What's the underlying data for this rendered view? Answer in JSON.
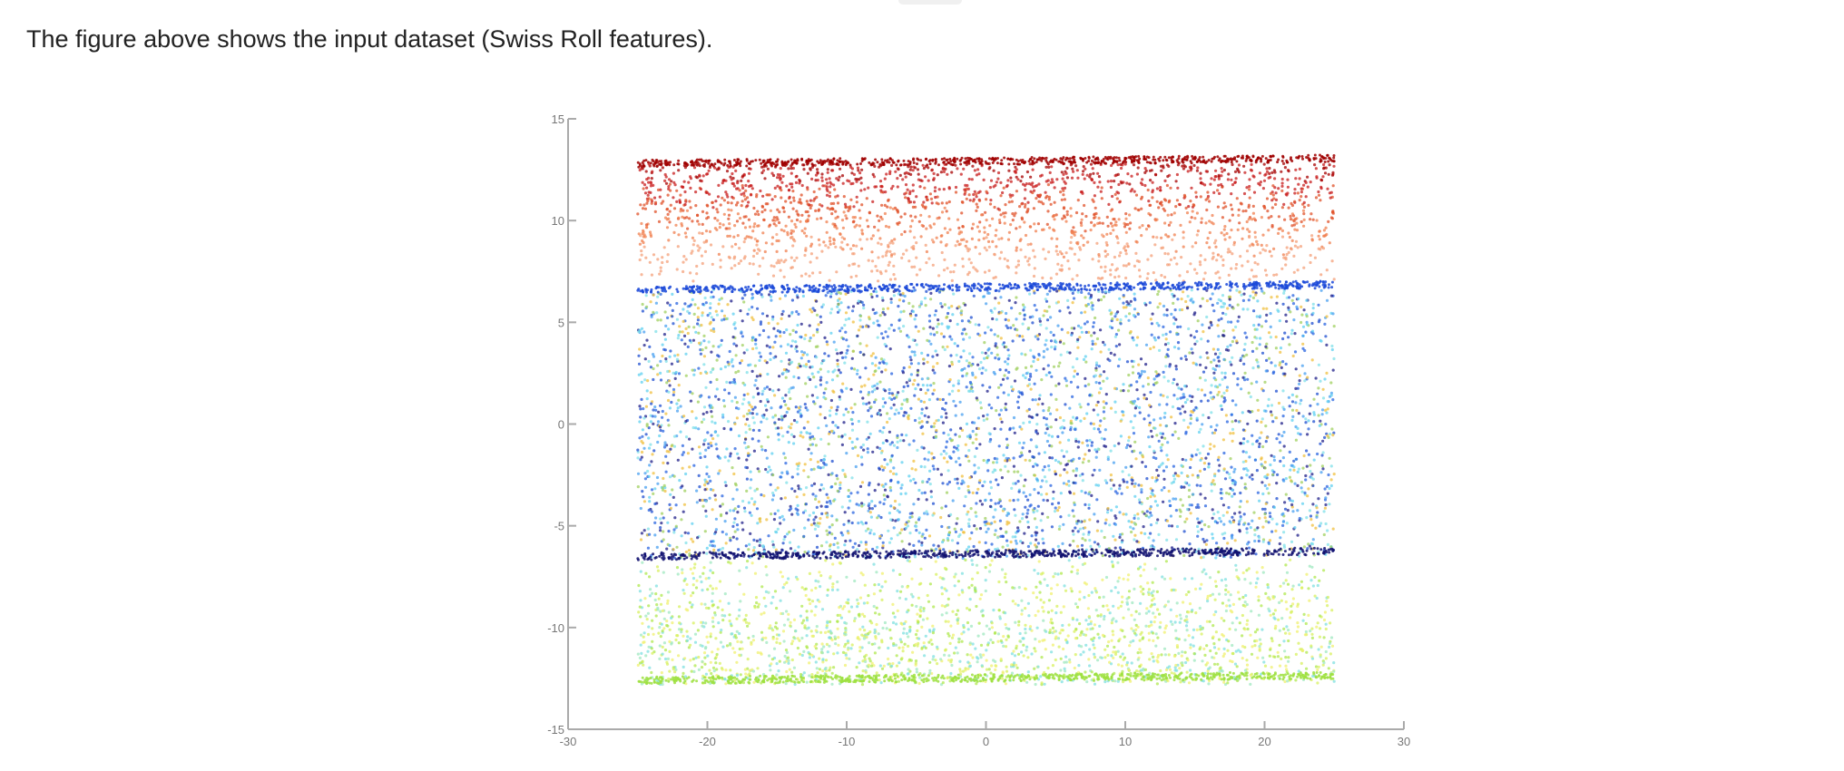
{
  "page": {
    "caption": "The figure above shows the input dataset (Swiss Roll features)."
  },
  "chart_data": {
    "type": "scatter",
    "title": "",
    "xlabel": "",
    "ylabel": "",
    "xlim": [
      -30,
      30
    ],
    "ylim": [
      -15,
      15
    ],
    "grid": false,
    "legend": "none",
    "x_ticks": [
      -30,
      -20,
      -10,
      0,
      10,
      20,
      30
    ],
    "y_ticks": [
      -15,
      -10,
      -5,
      0,
      5,
      10,
      15
    ],
    "x_tick_labels": [
      "-30",
      "-20",
      "-10",
      "0",
      "10",
      "20",
      "30"
    ],
    "y_tick_labels": [
      "-15",
      "-10",
      "-5",
      "0",
      "5",
      "10",
      "15"
    ],
    "x_extent": [
      -25,
      25
    ],
    "bands": [
      {
        "y_range": [
          7,
          12.8
        ],
        "colors": [
          "#a50000",
          "#c81e1e",
          "#e0522a",
          "#f08050",
          "#f4a07a"
        ],
        "dense_edge": 12.8
      },
      {
        "y_range": [
          -6.6,
          6.6
        ],
        "colors": [
          "#1f4fd0",
          "#2b66e0",
          "#4aa0f0",
          "#60d0f0",
          "#80e0e8",
          "#20208a",
          "#f0c040",
          "#a0d060"
        ],
        "dense_edge_top": 6.6,
        "dense_edge_bottom": -6.5
      },
      {
        "y_range": [
          -12.8,
          -6.6
        ],
        "colors": [
          "#b0e850",
          "#d8f060",
          "#f0f070",
          "#a0e8c0",
          "#80e0e0"
        ],
        "dense_edge": -12.6
      }
    ],
    "axis_color": "#aaaaaa"
  }
}
